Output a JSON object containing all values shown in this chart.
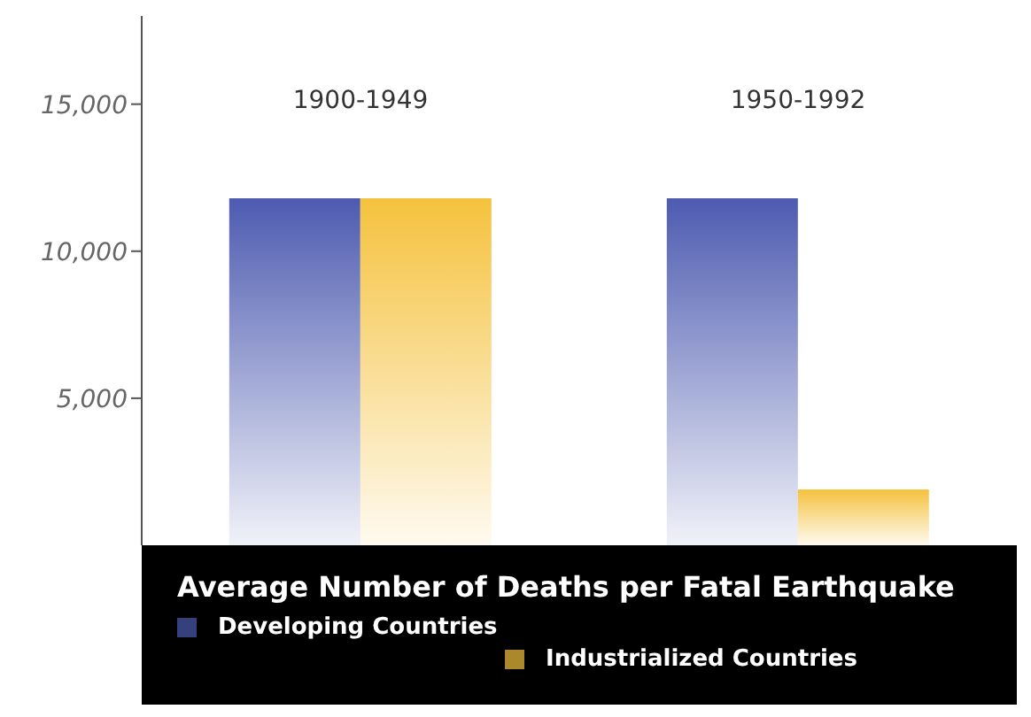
{
  "chart_data": {
    "type": "bar",
    "title": "Average Number of Deaths per Fatal Earthquake",
    "categories": [
      "1900-1949",
      "1950-1992"
    ],
    "series": [
      {
        "name": "Developing Countries",
        "color": "#4d5bb0",
        "values": [
          11800,
          11800
        ]
      },
      {
        "name": "Industrialized Countries",
        "color": "#f5c23e",
        "values": [
          11800,
          1900
        ]
      }
    ],
    "ylim": [
      0,
      18000
    ],
    "yticks": [
      {
        "value": 5000,
        "label": "5,000"
      },
      {
        "value": 10000,
        "label": "10,000"
      },
      {
        "value": 15000,
        "label": "15,000"
      }
    ],
    "grid": false,
    "legend": "bottom"
  }
}
